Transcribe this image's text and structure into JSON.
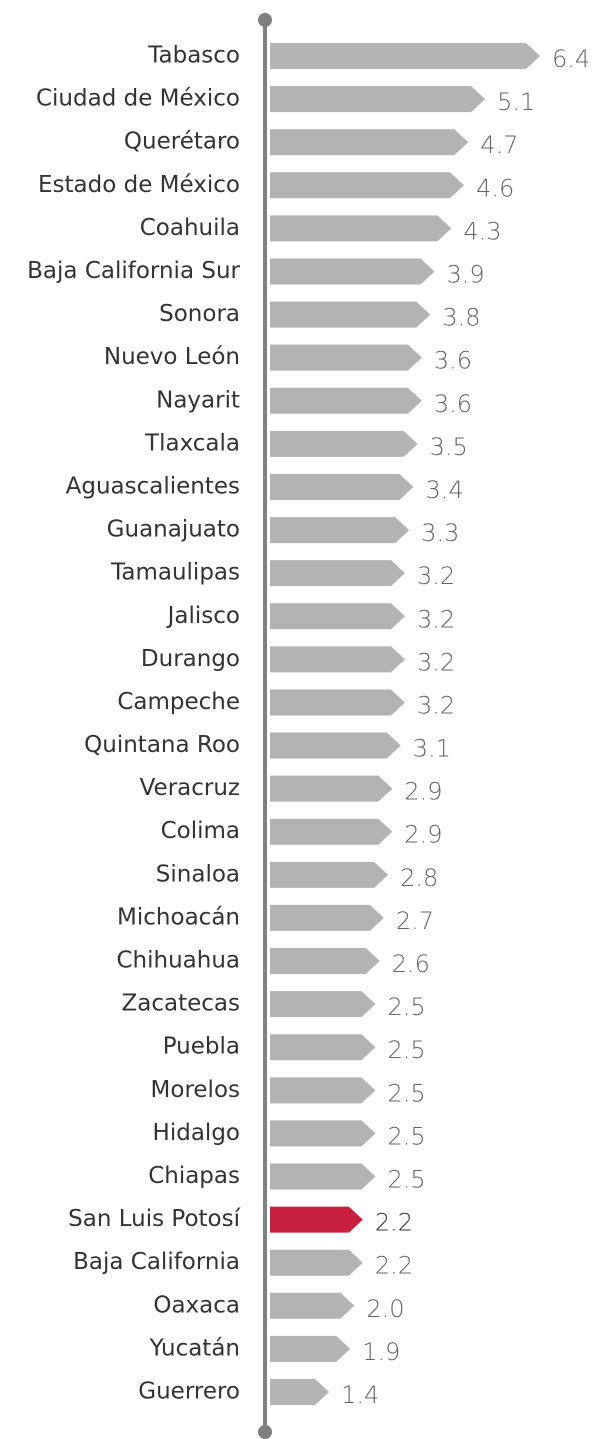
{
  "chart_data": {
    "type": "bar",
    "orientation": "horizontal",
    "categories": [
      "Tabasco",
      "Ciudad de México",
      "Querétaro",
      "Estado de México",
      "Coahuila",
      "Baja California Sur",
      "Sonora",
      "Nuevo León",
      "Nayarit",
      "Tlaxcala",
      "Aguascalientes",
      "Guanajuato",
      "Tamaulipas",
      "Jalisco",
      "Durango",
      "Campeche",
      "Quintana Roo",
      "Veracruz",
      "Colima",
      "Sinaloa",
      "Michoacán",
      "Chihuahua",
      "Zacatecas",
      "Puebla",
      "Morelos",
      "Hidalgo",
      "Chiapas",
      "San Luis Potosí",
      "Baja California",
      "Oaxaca",
      "Yucatán",
      "Guerrero"
    ],
    "values": [
      6.4,
      5.1,
      4.7,
      4.6,
      4.3,
      3.9,
      3.8,
      3.6,
      3.6,
      3.5,
      3.4,
      3.3,
      3.2,
      3.2,
      3.2,
      3.2,
      3.1,
      2.9,
      2.9,
      2.8,
      2.7,
      2.6,
      2.5,
      2.5,
      2.5,
      2.5,
      2.5,
      2.2,
      2.2,
      2.0,
      1.9,
      1.4
    ],
    "value_labels": [
      "6.4",
      "5.1",
      "4.7",
      "4.6",
      "4.3",
      "3.9",
      "3.8",
      "3.6",
      "3.6",
      "3.5",
      "3.4",
      "3.3",
      "3.2",
      "3.2",
      "3.2",
      "3.2",
      "3.1",
      "2.9",
      "2.9",
      "2.8",
      "2.7",
      "2.6",
      "2.5",
      "2.5",
      "2.5",
      "2.5",
      "2.5",
      "2.2",
      "2.2",
      "2.0",
      "1.9",
      "1.4"
    ],
    "color": "#b3b3b3",
    "colors": [
      "#b3b3b3",
      "#b3b3b3",
      "#b3b3b3",
      "#b3b3b3",
      "#b3b3b3",
      "#b3b3b3",
      "#b3b3b3",
      "#b3b3b3",
      "#b3b3b3",
      "#b3b3b3",
      "#b3b3b3",
      "#b3b3b3",
      "#b3b3b3",
      "#b3b3b3",
      "#b3b3b3",
      "#b3b3b3",
      "#b3b3b3",
      "#b3b3b3",
      "#b3b3b3",
      "#b3b3b3",
      "#b3b3b3",
      "#b3b3b3",
      "#b3b3b3",
      "#b3b3b3",
      "#b3b3b3",
      "#b3b3b3",
      "#b3b3b3",
      "#c8203f",
      "#b3b3b3",
      "#b3b3b3",
      "#b3b3b3",
      "#b3b3b3"
    ]
  }
}
